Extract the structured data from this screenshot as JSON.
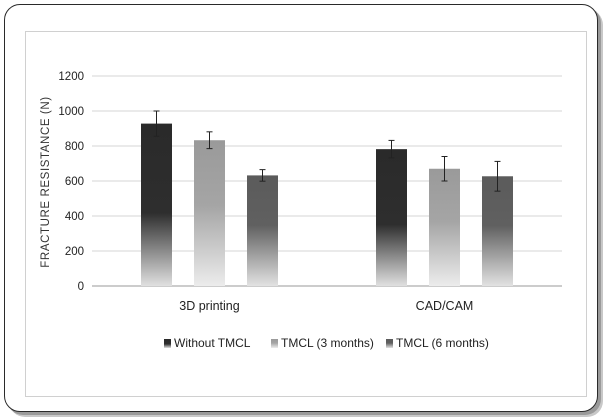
{
  "chart_data": {
    "type": "bar",
    "title": "",
    "xlabel": "",
    "ylabel": "FRACTURE RESISTANCE (N)",
    "ylim": [
      0,
      1200
    ],
    "yticks": [
      "0",
      "200",
      "400",
      "600",
      "800",
      "1000",
      "1200"
    ],
    "grid": "horizontal",
    "legend_position": "bottom",
    "categories": [
      "3D printing",
      "CAD/CAM"
    ],
    "series": [
      {
        "name": "Without TMCL",
        "values": [
          928,
          782
        ],
        "errors": [
          72,
          50
        ],
        "color": "#2b2b2b"
      },
      {
        "name": "TMCL (3 months)",
        "values": [
          833,
          670
        ],
        "errors": [
          48,
          70
        ],
        "color": "#9c9c9c"
      },
      {
        "name": "TMCL (6 months)",
        "values": [
          632,
          627
        ],
        "errors": [
          33,
          85
        ],
        "color": "#5e5e5e"
      }
    ]
  }
}
